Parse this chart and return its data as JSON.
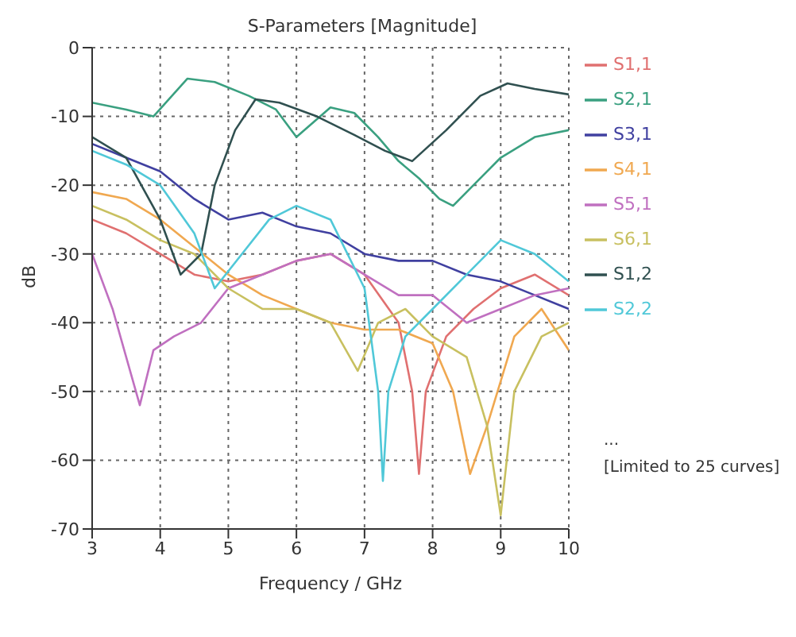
{
  "chart_data": {
    "type": "line",
    "title": "S-Parameters [Magnitude]",
    "xlabel": "Frequency / GHz",
    "ylabel": "dB",
    "xlim": [
      3,
      10
    ],
    "ylim": [
      -70,
      0
    ],
    "xticks": [
      3,
      4,
      5,
      6,
      7,
      8,
      9,
      10
    ],
    "yticks": [
      -70,
      -60,
      -50,
      -40,
      -30,
      -20,
      -10,
      0
    ],
    "grid": true,
    "legend": "right",
    "marker": "none",
    "line_style": "solid",
    "annotations": [
      "...",
      "[Limited to 25 curves]"
    ],
    "series": [
      {
        "name": "S1,1",
        "color": "#e07070",
        "x": [
          3,
          3.5,
          4,
          4.5,
          5,
          5.5,
          6,
          6.5,
          7,
          7.5,
          7.7,
          7.8,
          7.9,
          8.2,
          8.6,
          9,
          9.5,
          10
        ],
        "values": [
          -25,
          -27,
          -30,
          -33,
          -34,
          -33,
          -31,
          -30,
          -33,
          -40,
          -50,
          -62,
          -50,
          -42,
          -38,
          -35,
          -33,
          -36
        ]
      },
      {
        "name": "S2,1",
        "color": "#3aa080",
        "x": [
          3,
          3.5,
          3.9,
          4.4,
          4.8,
          5.3,
          5.7,
          6,
          6.5,
          6.85,
          7.2,
          7.5,
          7.8,
          8.1,
          8.3,
          8.6,
          9,
          9.5,
          10
        ],
        "values": [
          -8,
          -9,
          -10,
          -4.5,
          -5,
          -7,
          -9,
          -13,
          -8.7,
          -9.5,
          -13,
          -16.5,
          -19,
          -22,
          -23,
          -20,
          -16,
          -13,
          -12
        ]
      },
      {
        "name": "S3,1",
        "color": "#4040a0",
        "x": [
          3,
          3.5,
          4,
          4.5,
          5,
          5.5,
          6,
          6.5,
          7,
          7.5,
          8,
          8.5,
          9,
          9.5,
          10
        ],
        "values": [
          -14,
          -16,
          -18,
          -22,
          -25,
          -24,
          -26,
          -27,
          -30,
          -31,
          -31,
          -33,
          -34,
          -36,
          -38
        ]
      },
      {
        "name": "S4,1",
        "color": "#f0a850",
        "x": [
          3,
          3.5,
          4,
          4.5,
          5,
          5.5,
          6,
          6.5,
          7,
          7.5,
          8,
          8.3,
          8.55,
          8.8,
          9.2,
          9.6,
          10
        ],
        "values": [
          -21,
          -22,
          -25,
          -29,
          -33,
          -36,
          -38,
          -40,
          -41,
          -41,
          -43,
          -50,
          -62,
          -55,
          -42,
          -38,
          -44
        ]
      },
      {
        "name": "S5,1",
        "color": "#c070c0",
        "x": [
          3,
          3.3,
          3.5,
          3.7,
          3.9,
          4.2,
          4.6,
          5,
          5.5,
          6,
          6.5,
          7,
          7.5,
          8,
          8.5,
          9,
          9.5,
          10
        ],
        "values": [
          -30,
          -38,
          -45,
          -52,
          -44,
          -42,
          -40,
          -35,
          -33,
          -31,
          -30,
          -33,
          -36,
          -36,
          -40,
          -38,
          -36,
          -35
        ]
      },
      {
        "name": "S6,1",
        "color": "#c8c060",
        "x": [
          3,
          3.5,
          4,
          4.5,
          5,
          5.5,
          6,
          6.5,
          6.9,
          7.2,
          7.6,
          8,
          8.5,
          8.8,
          9,
          9.2,
          9.6,
          10
        ],
        "values": [
          -23,
          -25,
          -28,
          -30,
          -35,
          -38,
          -38,
          -40,
          -47,
          -40,
          -38,
          -42,
          -45,
          -55,
          -68,
          -50,
          -42,
          -40
        ]
      },
      {
        "name": "S1,2",
        "color": "#305050",
        "x": [
          3,
          3.5,
          4,
          4.3,
          4.6,
          4.8,
          5.1,
          5.4,
          5.75,
          6.3,
          6.85,
          7.3,
          7.7,
          8.2,
          8.7,
          9.1,
          9.5,
          10
        ],
        "values": [
          -13,
          -16,
          -25,
          -33,
          -30,
          -20,
          -12,
          -7.5,
          -8,
          -10,
          -12.7,
          -15,
          -16.5,
          -12,
          -7,
          -5.2,
          -6,
          -6.8
        ]
      },
      {
        "name": "S2,2",
        "color": "#50c8d8",
        "x": [
          3,
          3.5,
          4,
          4.5,
          4.8,
          5.2,
          5.6,
          6,
          6.5,
          7,
          7.2,
          7.27,
          7.35,
          7.6,
          8,
          8.5,
          9,
          9.5,
          10
        ],
        "values": [
          -15,
          -17,
          -20,
          -27,
          -35,
          -30,
          -25,
          -23,
          -25,
          -35,
          -50,
          -63,
          -50,
          -42,
          -38,
          -33,
          -28,
          -30,
          -34
        ]
      }
    ]
  }
}
